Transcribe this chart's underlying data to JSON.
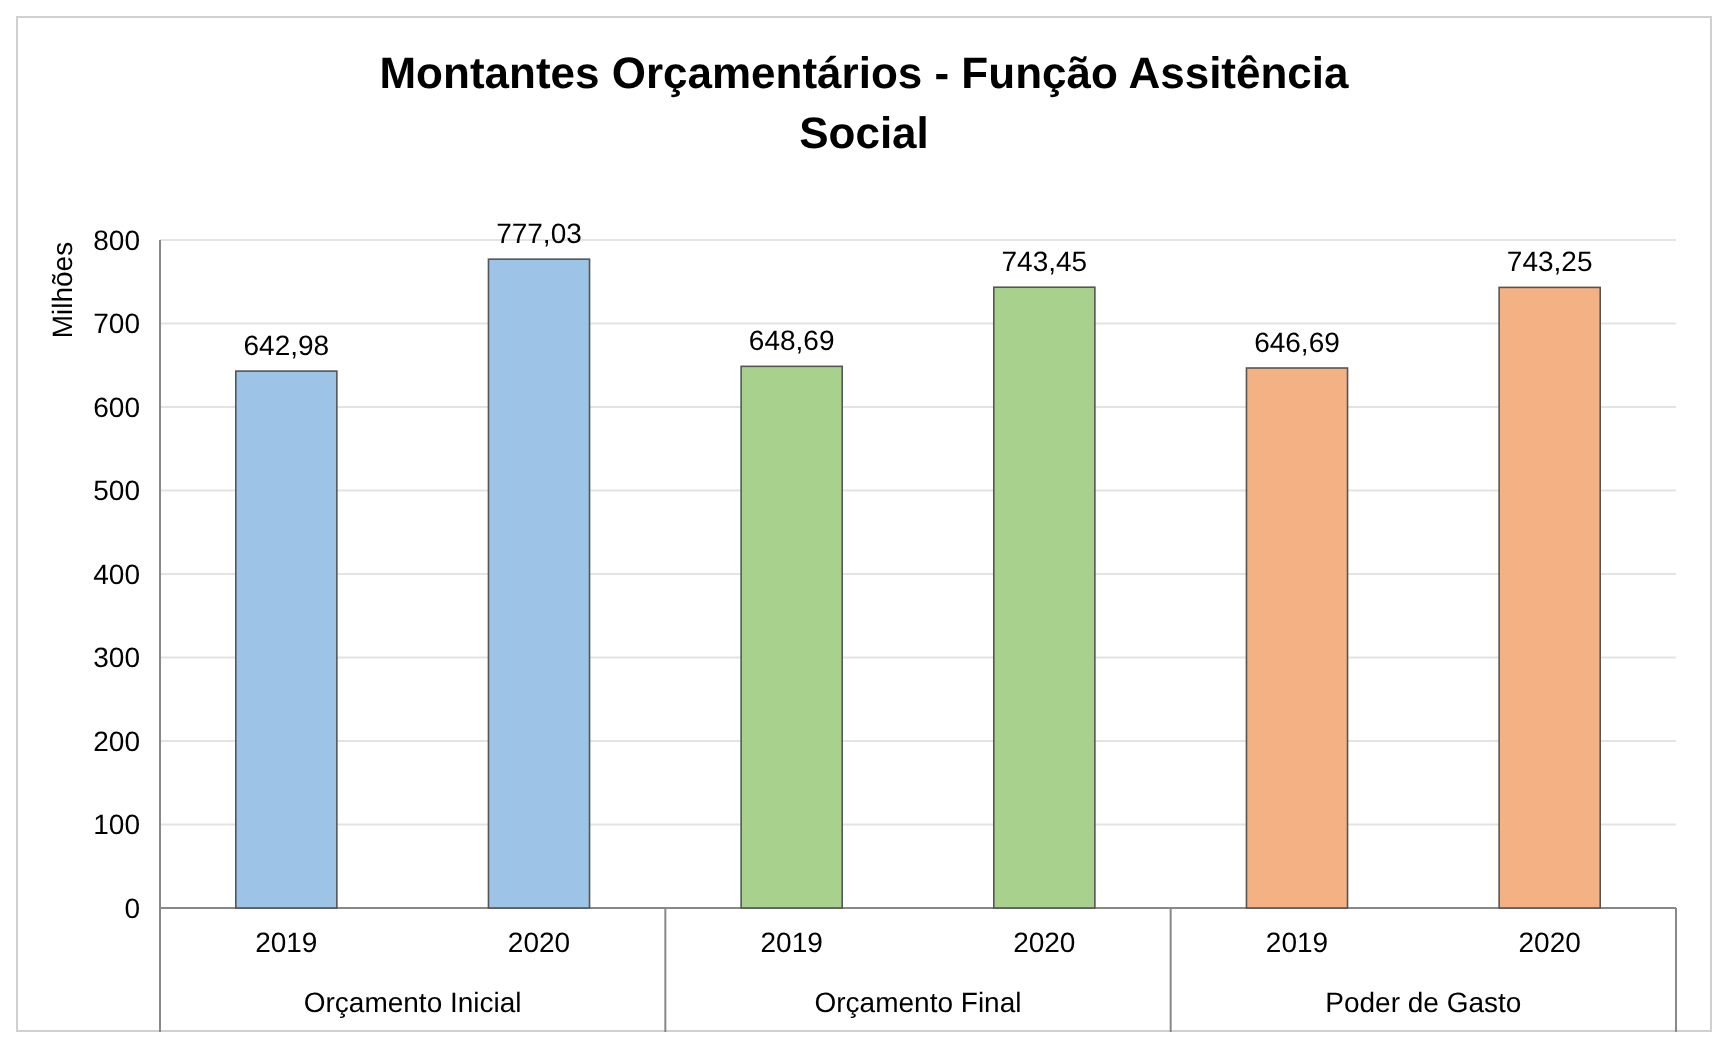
{
  "chart_data": {
    "type": "bar",
    "title": "Montantes Orçamentários - Função Assitência Social",
    "ylabel": "Milhões",
    "categories": [
      "2019",
      "2020",
      "2019",
      "2020",
      "2019",
      "2020"
    ],
    "values": [
      642.98,
      777.03,
      648.69,
      743.45,
      646.69,
      743.25
    ],
    "colors": [
      "#9dc3e6",
      "#9dc3e6",
      "#a9d18e",
      "#a9d18e",
      "#f4b183",
      "#f4b183"
    ],
    "value_labels": [
      "642,98",
      "777,03",
      "648,69",
      "743,45",
      "646,69",
      "743,25"
    ],
    "annotations": [
      "Orçamento Inicial",
      "Orçamento Final",
      "Poder de Gasto"
    ],
    "ylim": [
      0,
      800
    ],
    "yticks": [
      0,
      100,
      200,
      300,
      400,
      500,
      600,
      700,
      800
    ],
    "grid": "y"
  }
}
